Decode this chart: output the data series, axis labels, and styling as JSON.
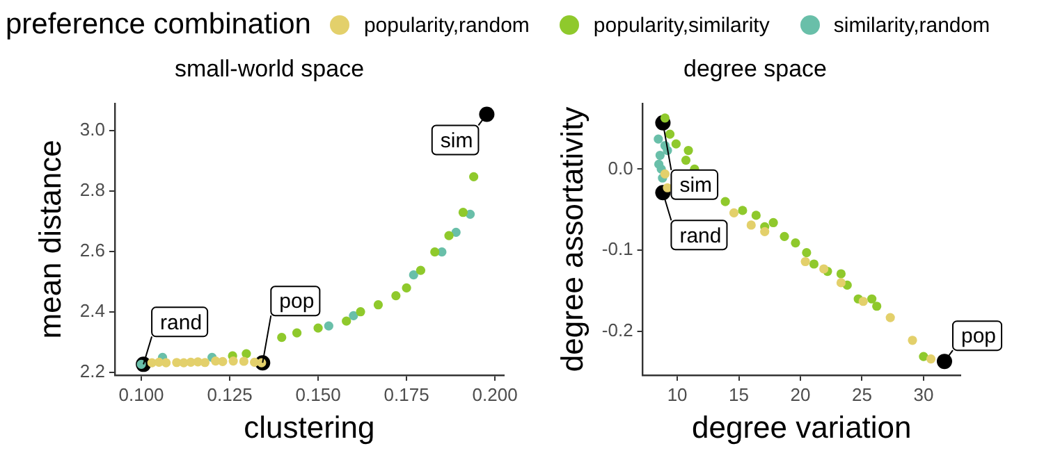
{
  "chart_data": [
    {
      "type": "scatter",
      "title": "small-world space",
      "xlabel": "clustering",
      "ylabel": "mean distance",
      "legend": "top",
      "legend_title": "preference combination",
      "grid": false,
      "marker": "circle",
      "xlim": [
        0.0925,
        0.2025
      ],
      "ylim": [
        2.19,
        3.09
      ],
      "xticks": [
        {
          "value": 0.1,
          "label": "0.100"
        },
        {
          "value": 0.125,
          "label": "0.125"
        },
        {
          "value": 0.15,
          "label": "0.150"
        },
        {
          "value": 0.175,
          "label": "0.175"
        },
        {
          "value": 0.2,
          "label": "0.200"
        }
      ],
      "yticks": [
        2.2,
        2.4,
        2.6,
        2.8,
        {
          "value": 3,
          "label": "3.0"
        }
      ],
      "series": [
        {
          "name": "popularity,random",
          "color": "#e3d06b",
          "x": [
            0.103,
            0.105,
            0.107,
            0.11,
            0.112,
            0.114,
            0.116,
            0.118,
            0.121,
            0.123,
            0.126,
            0.129,
            0.132,
            0.134
          ],
          "values": [
            2.231,
            2.233,
            2.231,
            2.232,
            2.231,
            2.233,
            2.234,
            2.232,
            2.237,
            2.235,
            2.237,
            2.236,
            2.233,
            2.231
          ]
        },
        {
          "name": "popularity,similarity",
          "color": "#8fc92c",
          "x": [
            0.1258,
            0.1297,
            0.1397,
            0.144,
            0.15,
            0.158,
            0.162,
            0.167,
            0.172,
            0.175,
            0.179,
            0.183,
            0.187,
            0.191,
            0.194
          ],
          "values": [
            2.254,
            2.261,
            2.315,
            2.33,
            2.346,
            2.369,
            2.4,
            2.423,
            2.453,
            2.479,
            2.537,
            2.598,
            2.652,
            2.729,
            2.847
          ]
        },
        {
          "name": "similarity,random",
          "color": "#69bfa9",
          "x": [
            0.1,
            0.106,
            0.12,
            0.153,
            0.16,
            0.177,
            0.185,
            0.189,
            0.193
          ],
          "values": [
            2.226,
            2.249,
            2.249,
            2.353,
            2.387,
            2.522,
            2.598,
            2.663,
            2.723
          ]
        },
        {
          "color": "#000000",
          "x": [
            0.1006,
            0.1343,
            0.1977
          ],
          "values": [
            2.226,
            2.231,
            3.054
          ]
        }
      ],
      "annotations": [
        {
          "text": "rand",
          "x": 0.1006,
          "y": 2.226
        },
        {
          "text": "pop",
          "x": 0.1343,
          "y": 2.231
        },
        {
          "text": "sim",
          "x": 0.1977,
          "y": 3.054
        }
      ]
    },
    {
      "type": "scatter",
      "title": "degree space",
      "xlabel": "degree variation",
      "ylabel": "degree assortativity",
      "legend": false,
      "grid": false,
      "marker": "circle",
      "xlim": [
        7.2,
        33
      ],
      "ylim": [
        -0.254,
        0.081
      ],
      "xticks": [
        10,
        15,
        20,
        25,
        30
      ],
      "yticks": [
        -0.2,
        -0.1,
        {
          "value": 0,
          "label": "0.0"
        }
      ],
      "series": [
        {
          "color": "#e3d06b",
          "x": [
            9.2,
            9.0,
            14.6,
            16.0,
            17.1,
            20.4,
            21.9,
            23.3,
            25.1,
            27.3,
            29.1,
            30.6
          ],
          "values": [
            -0.023,
            -0.006,
            -0.054,
            -0.069,
            -0.077,
            -0.114,
            -0.123,
            -0.14,
            -0.163,
            -0.183,
            -0.211,
            -0.234
          ]
        },
        {
          "color": "#8fc92c",
          "x": [
            9.0,
            9.4,
            9.9,
            10.7,
            10.9,
            11.4,
            13.9,
            15.3,
            16.4,
            17.1,
            17.8,
            18.7,
            19.6,
            20.5,
            21.1,
            22.2,
            23.3,
            23.8,
            24.7,
            25.8,
            26.2,
            30.0
          ],
          "values": [
            0.063,
            0.043,
            0.031,
            0.011,
            0.023,
            0.0,
            -0.04,
            -0.051,
            -0.057,
            -0.071,
            -0.066,
            -0.083,
            -0.091,
            -0.103,
            -0.117,
            -0.126,
            -0.129,
            -0.143,
            -0.16,
            -0.16,
            -0.169,
            -0.231
          ]
        },
        {
          "color": "#69bfa9",
          "x": [
            8.46,
            8.6,
            8.7,
            8.8,
            9.0,
            8.5,
            9.2
          ],
          "values": [
            0.037,
            0.017,
            0.0,
            -0.011,
            0.029,
            0.006,
            0.023
          ]
        },
        {
          "color": "#000000",
          "x": [
            8.83,
            8.83,
            31.7
          ],
          "values": [
            0.057,
            -0.029,
            -0.237
          ]
        }
      ],
      "annotations": [
        {
          "text": "sim",
          "x": 8.83,
          "y": 0.057
        },
        {
          "text": "rand",
          "x": 8.83,
          "y": -0.029
        },
        {
          "text": "pop",
          "x": 31.7,
          "y": -0.237
        }
      ]
    }
  ]
}
